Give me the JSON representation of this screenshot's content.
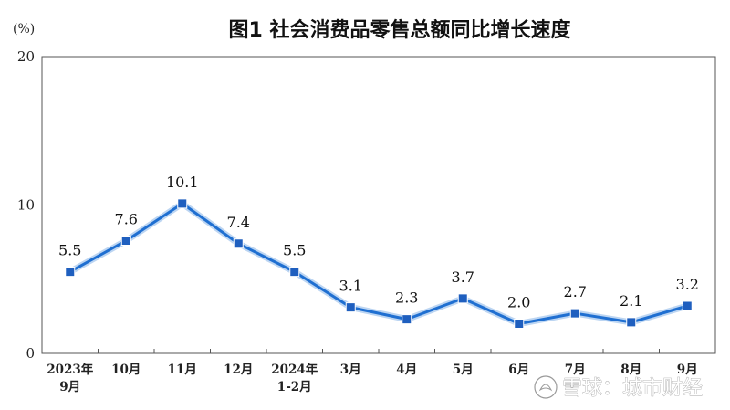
{
  "chart_data": {
    "type": "line",
    "title": "图1  社会消费品零售总额同比增长速度",
    "unit": "(%)",
    "categories": [
      [
        "2023年",
        "9月"
      ],
      [
        "10月"
      ],
      [
        "11月"
      ],
      [
        "12月"
      ],
      [
        "2024年",
        "1-2月"
      ],
      [
        "3月"
      ],
      [
        "4月"
      ],
      [
        "5月"
      ],
      [
        "6月"
      ],
      [
        "7月"
      ],
      [
        "8月"
      ],
      [
        "9月"
      ]
    ],
    "values": [
      5.5,
      7.6,
      10.1,
      7.4,
      5.5,
      3.1,
      2.3,
      3.7,
      2.0,
      2.7,
      2.1,
      3.2
    ],
    "data_labels": [
      "5.5",
      "7.6",
      "10.1",
      "7.4",
      "5.5",
      "3.1",
      "2.3",
      "3.7",
      "2.0",
      "2.7",
      "2.1",
      "3.2"
    ],
    "ylim": [
      0,
      20
    ],
    "yticks": [
      0,
      10,
      20
    ],
    "grid": false,
    "line_color": "#1f6fd1",
    "marker_color": "#1f5fbf",
    "glow_color": "#bcd5f2"
  },
  "watermark": {
    "text": "雪球：城市财经"
  }
}
